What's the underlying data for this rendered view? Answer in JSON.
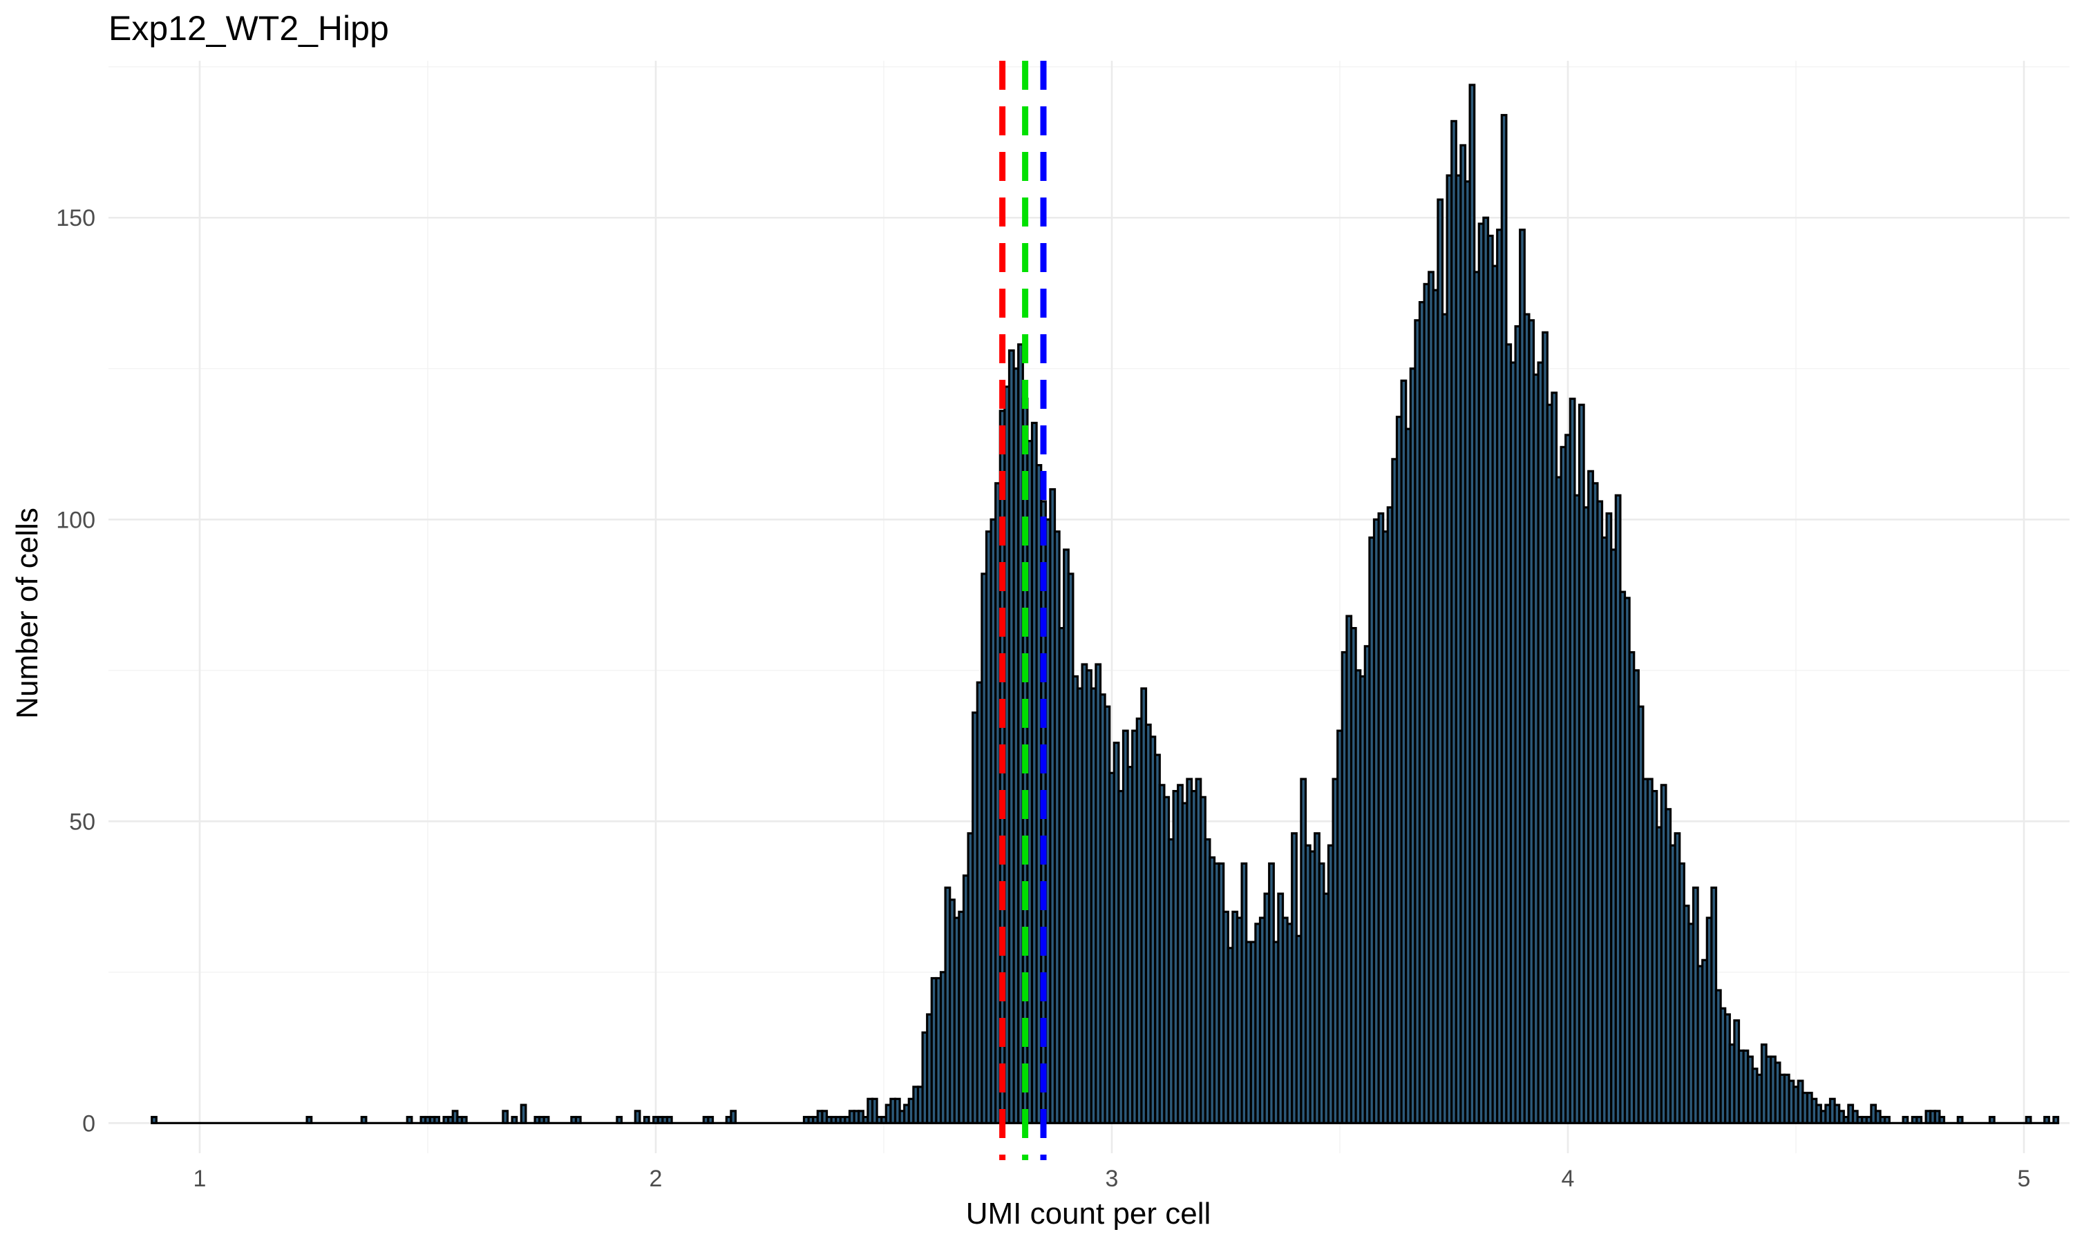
{
  "chart_data": {
    "type": "bar",
    "title": "Exp12_WT2_Hipp",
    "xlabel": "UMI count per cell",
    "ylabel": "Number of cells",
    "xlim": [
      0.8,
      5.1
    ],
    "ylim": [
      -5,
      176
    ],
    "xticks": [
      1,
      2,
      3,
      4,
      5
    ],
    "yticks": [
      0,
      50,
      100,
      150
    ],
    "grid": true,
    "bin_width": 0.01,
    "bin_start": 0.895,
    "values": [
      1,
      0,
      0,
      0,
      0,
      0,
      0,
      0,
      0,
      0,
      0,
      0,
      0,
      0,
      0,
      0,
      0,
      0,
      0,
      0,
      0,
      0,
      0,
      0,
      0,
      0,
      0,
      0,
      0,
      0,
      0,
      0,
      0,
      0,
      1,
      0,
      0,
      0,
      0,
      0,
      0,
      0,
      0,
      0,
      0,
      0,
      1,
      0,
      0,
      0,
      0,
      0,
      0,
      0,
      0,
      0,
      1,
      0,
      0,
      1,
      1,
      1,
      1,
      0,
      1,
      1,
      2,
      1,
      1,
      0,
      0,
      0,
      0,
      0,
      0,
      0,
      0,
      2,
      0,
      1,
      0,
      3,
      0,
      0,
      1,
      1,
      1,
      0,
      0,
      0,
      0,
      0,
      1,
      1,
      0,
      0,
      0,
      0,
      0,
      0,
      0,
      0,
      1,
      0,
      0,
      0,
      2,
      0,
      1,
      0,
      1,
      1,
      1,
      1,
      0,
      0,
      0,
      0,
      0,
      0,
      0,
      1,
      1,
      0,
      0,
      0,
      1,
      2,
      0,
      0,
      0,
      0,
      0,
      0,
      0,
      0,
      0,
      0,
      0,
      0,
      0,
      0,
      0,
      1,
      1,
      1,
      2,
      2,
      1,
      1,
      1,
      1,
      1,
      2,
      2,
      2,
      1,
      4,
      4,
      1,
      1,
      3,
      4,
      4,
      2,
      3,
      4,
      6,
      6,
      15,
      18,
      24,
      24,
      25,
      39,
      37,
      34,
      35,
      41,
      48,
      68,
      73,
      91,
      98,
      100,
      106,
      118,
      122,
      128,
      125,
      129,
      120,
      113,
      116,
      109,
      103,
      100,
      105,
      98,
      82,
      95,
      91,
      74,
      72,
      76,
      75,
      72,
      76,
      71,
      69,
      58,
      63,
      55,
      65,
      59,
      65,
      67,
      72,
      66,
      64,
      61,
      56,
      54,
      47,
      55,
      56,
      53,
      57,
      55,
      57,
      54,
      47,
      44,
      43,
      43,
      35,
      29,
      35,
      34,
      43,
      30,
      30,
      33,
      34,
      38,
      43,
      30,
      38,
      34,
      33,
      48,
      31,
      57,
      46,
      45,
      48,
      43,
      38,
      46,
      57,
      65,
      78,
      84,
      82,
      75,
      74,
      79,
      97,
      100,
      101,
      98,
      102,
      110,
      117,
      123,
      115,
      125,
      133,
      136,
      139,
      141,
      138,
      153,
      134,
      157,
      166,
      157,
      162,
      156,
      172,
      141,
      149,
      150,
      147,
      142,
      148,
      167,
      129,
      126,
      132,
      148,
      134,
      133,
      124,
      126,
      131,
      119,
      121,
      107,
      112,
      114,
      120,
      104,
      119,
      102,
      108,
      106,
      103,
      97,
      101,
      95,
      104,
      88,
      87,
      78,
      75,
      69,
      57,
      57,
      55,
      49,
      56,
      52,
      46,
      48,
      43,
      36,
      33,
      39,
      26,
      27,
      34,
      39,
      22,
      19,
      18,
      13,
      17,
      12,
      12,
      11,
      9,
      8,
      13,
      11,
      11,
      10,
      8,
      8,
      7,
      6,
      7,
      5,
      5,
      4,
      3,
      2,
      3,
      4,
      3,
      2,
      1,
      3,
      2,
      1,
      1,
      1,
      3,
      2,
      1,
      1,
      0,
      0,
      0,
      1,
      0,
      1,
      1,
      0,
      2,
      2,
      2,
      1,
      0,
      0,
      0,
      1,
      0,
      0,
      0,
      0,
      0,
      0,
      1,
      0,
      0,
      0,
      0,
      0,
      0,
      0,
      1,
      0,
      0,
      0,
      1,
      0,
      1
    ],
    "vlines": [
      {
        "x": 2.76,
        "color": "#ff0000"
      },
      {
        "x": 2.81,
        "color": "#00e000"
      },
      {
        "x": 2.85,
        "color": "#0000ff"
      }
    ],
    "bar_fill": "#2d5a7a",
    "bar_outline": "#000000"
  }
}
